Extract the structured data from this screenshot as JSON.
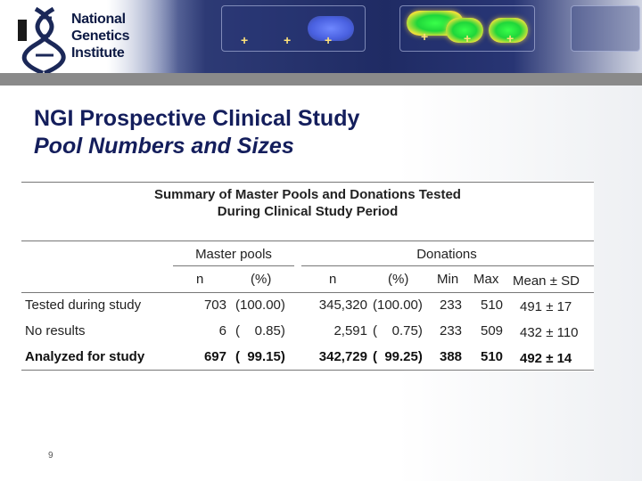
{
  "logo": {
    "line1": "National",
    "line2": "Genetics",
    "line3": "Institute"
  },
  "slide": {
    "title_line1": "NGI Prospective Clinical Study",
    "title_line2": "Pool Numbers and Sizes",
    "page_number": "9"
  },
  "table": {
    "caption_line1": "Summary of Master Pools and Donations Tested",
    "caption_line2": "During Clinical Study Period",
    "group_master_pools": "Master pools",
    "group_donations": "Donations",
    "sub_headers": [
      "n",
      "(%)",
      "n",
      "(%)",
      "Min",
      "Max",
      "Mean ± SD"
    ],
    "rows": [
      {
        "label": "Tested during study",
        "cells": [
          "703",
          "(100.00)",
          "345,320",
          "(100.00)",
          "233",
          "510",
          "491 ± 17"
        ],
        "bold": false
      },
      {
        "label": "No results",
        "cells": [
          "6",
          "(    0.85)",
          "2,591",
          "(    0.75)",
          "233",
          "509",
          "432 ± 110"
        ],
        "bold": false
      },
      {
        "label": "Analyzed for study",
        "cells": [
          "697",
          "(  99.15)",
          "342,729",
          "(  99.25)",
          "388",
          "510",
          "492 ± 14"
        ],
        "bold": true
      }
    ]
  }
}
